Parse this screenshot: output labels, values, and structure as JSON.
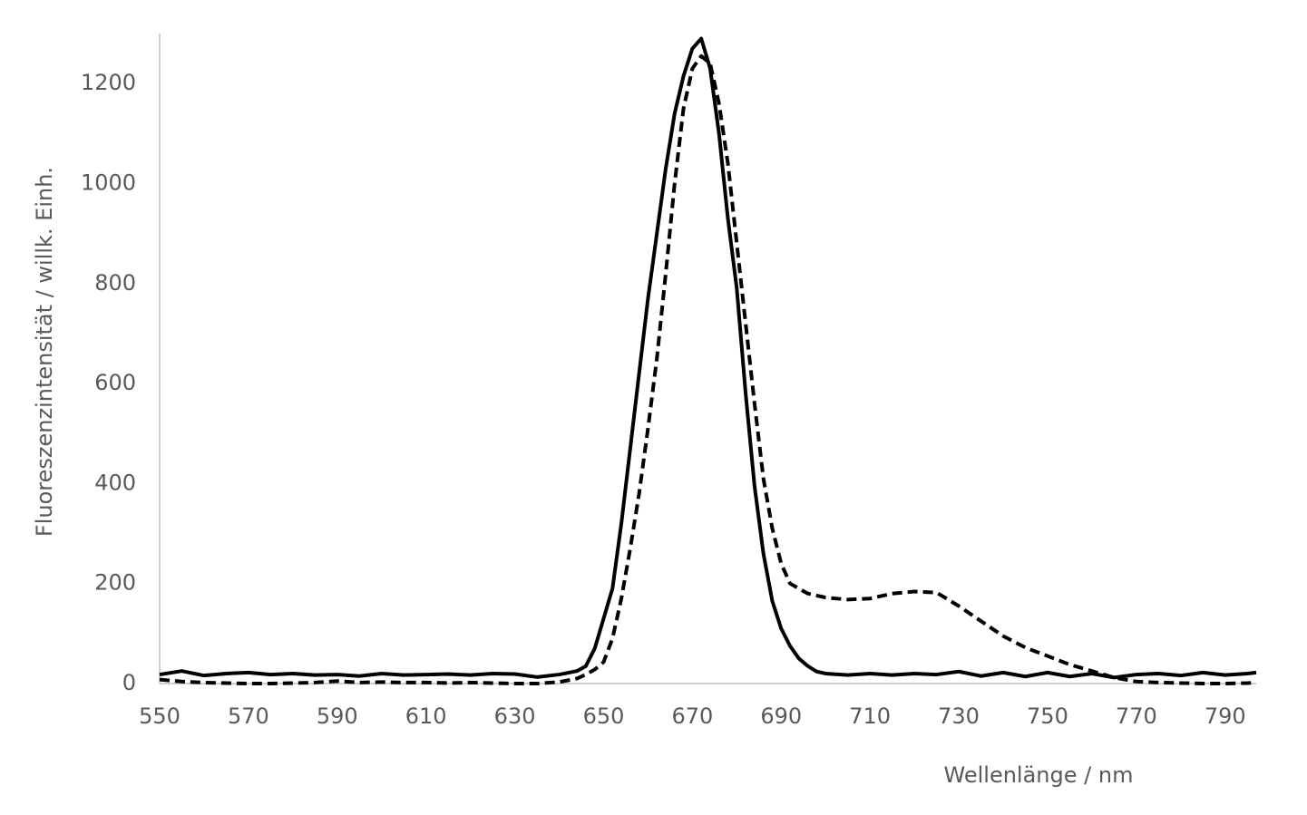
{
  "chart_data": {
    "type": "line",
    "xlabel": "Wellenlänge / nm",
    "ylabel": "Fluoreszenzintensität / willk. Einh.",
    "x": [
      550,
      555,
      560,
      565,
      570,
      575,
      580,
      585,
      590,
      595,
      600,
      605,
      610,
      615,
      620,
      625,
      630,
      635,
      640,
      644,
      646,
      648,
      650,
      652,
      654,
      656,
      658,
      660,
      662,
      664,
      666,
      668,
      670,
      672,
      674,
      676,
      678,
      680,
      682,
      684,
      686,
      688,
      690,
      692,
      694,
      696,
      698,
      700,
      705,
      710,
      715,
      720,
      725,
      730,
      735,
      740,
      745,
      750,
      755,
      760,
      765,
      770,
      775,
      780,
      785,
      790,
      795,
      797
    ],
    "series": [
      {
        "color": "#000000",
        "style": "solid",
        "values": [
          18,
          25,
          16,
          20,
          22,
          18,
          20,
          17,
          18,
          15,
          20,
          17,
          18,
          19,
          17,
          20,
          19,
          13,
          18,
          25,
          35,
          70,
          130,
          190,
          320,
          470,
          620,
          770,
          900,
          1030,
          1140,
          1215,
          1270,
          1290,
          1230,
          1100,
          930,
          790,
          580,
          395,
          260,
          165,
          110,
          75,
          50,
          35,
          24,
          20,
          17,
          20,
          17,
          20,
          18,
          24,
          15,
          22,
          14,
          22,
          14,
          20,
          12,
          18,
          20,
          16,
          22,
          17,
          20,
          22
        ]
      },
      {
        "color": "#000000",
        "style": "dashed",
        "values": [
          8,
          4,
          2,
          1,
          0,
          0,
          1,
          2,
          5,
          2,
          3,
          2,
          2,
          1,
          2,
          1,
          0,
          0,
          3,
          10,
          18,
          28,
          43,
          90,
          170,
          270,
          380,
          510,
          650,
          820,
          1000,
          1150,
          1230,
          1255,
          1240,
          1160,
          1040,
          880,
          720,
          560,
          410,
          310,
          240,
          200,
          190,
          180,
          176,
          172,
          168,
          170,
          180,
          184,
          182,
          155,
          125,
          95,
          72,
          55,
          38,
          25,
          12,
          4,
          2,
          1,
          0,
          0,
          1,
          2
        ]
      }
    ],
    "xlim": [
      550,
      797
    ],
    "xticks": [
      550,
      570,
      590,
      610,
      630,
      650,
      670,
      690,
      710,
      730,
      750,
      770,
      790
    ],
    "ylim": [
      0,
      1300
    ],
    "yticks": [
      0,
      200,
      400,
      600,
      800,
      1000,
      1200
    ],
    "grid": false
  }
}
